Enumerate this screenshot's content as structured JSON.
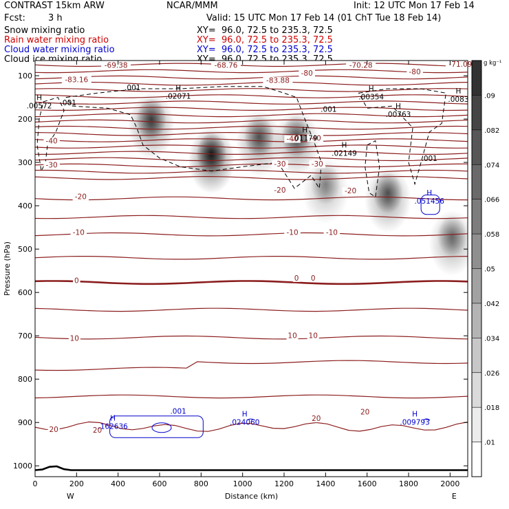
{
  "header": {
    "model": "CONTRAST 15km ARW",
    "org": "NCAR/MMM",
    "init": "Init: 12 UTC Mon 17 Feb 14",
    "fcst_label": "Fcst:",
    "fcst_value": "3 h",
    "valid": "Valid: 15 UTC Mon 17 Feb 14 (01 ChT Tue 18 Feb 14)"
  },
  "legend": [
    {
      "name": "Snow mixing ratio",
      "xy": "XY=  96.0, 72.5 to 235.3, 72.5",
      "color": "#000000"
    },
    {
      "name": "Rain water mixing ratio",
      "xy": "XY=  96.0, 72.5 to 235.3, 72.5",
      "color": "#cc0000"
    },
    {
      "name": "Cloud water mixing ratio",
      "xy": "XY=  96.0, 72.5 to 235.3, 72.5",
      "color": "#0000cc"
    },
    {
      "name": "Cloud ice mixing ratio",
      "xy": "XY=  96.0, 72.5 to 235.3, 72.5",
      "color": "#000000"
    }
  ],
  "colorbar": {
    "unit": "g kg⁻¹",
    "ticks": [
      ".01",
      ".018",
      ".026",
      ".034",
      ".042",
      ".05",
      ".058",
      ".066",
      ".074",
      ".082",
      ".09"
    ]
  },
  "compass": {
    "west": "W",
    "east": "E"
  },
  "chart_data": {
    "type": "heatmap",
    "xlabel": "Distance (km)",
    "ylabel": "Pressure (hPa)",
    "xlim": [
      0,
      2085
    ],
    "ylim": [
      1025,
      65
    ],
    "x_ticks": [
      0,
      200,
      400,
      600,
      800,
      1000,
      1200,
      1400,
      1600,
      1800,
      2000
    ],
    "y_ticks": [
      100,
      200,
      300,
      400,
      500,
      600,
      700,
      800,
      900,
      1000
    ],
    "snow_maxima": [
      {
        "x": 560,
        "p": 200,
        "v": 0.07
      },
      {
        "x": 850,
        "p": 280,
        "v": 0.09
      },
      {
        "x": 1080,
        "p": 240,
        "v": 0.06
      },
      {
        "x": 1260,
        "p": 240,
        "v": 0.06
      },
      {
        "x": 1400,
        "p": 350,
        "v": 0.04
      },
      {
        "x": 1700,
        "p": 370,
        "v": 0.06
      },
      {
        "x": 2010,
        "p": 470,
        "v": 0.05
      }
    ],
    "temperature_labels": [
      {
        "x": 390,
        "p": 80,
        "text": "-69.38"
      },
      {
        "x": 920,
        "p": 80,
        "text": "-68.76"
      },
      {
        "x": 1570,
        "p": 80,
        "text": "-70.28"
      },
      {
        "x": 2050,
        "p": 78,
        "text": "-71.09"
      },
      {
        "x": 200,
        "p": 113,
        "text": "-83.16"
      },
      {
        "x": 1170,
        "p": 115,
        "text": "-83.88"
      },
      {
        "x": 1310,
        "p": 98,
        "text": "-80"
      },
      {
        "x": 1830,
        "p": 95,
        "text": "-80"
      },
      {
        "x": 80,
        "p": 255,
        "text": "-40"
      },
      {
        "x": 1240,
        "p": 250,
        "text": "-40"
      },
      {
        "x": 1350,
        "p": 248,
        "text": "-40"
      },
      {
        "x": 80,
        "p": 310,
        "text": "-30"
      },
      {
        "x": 1180,
        "p": 308,
        "text": "-30"
      },
      {
        "x": 1360,
        "p": 308,
        "text": "-30"
      },
      {
        "x": 220,
        "p": 383,
        "text": "-20"
      },
      {
        "x": 1180,
        "p": 368,
        "text": "-20"
      },
      {
        "x": 1520,
        "p": 370,
        "text": "-20"
      },
      {
        "x": 210,
        "p": 466,
        "text": "-10"
      },
      {
        "x": 1240,
        "p": 466,
        "text": "-10"
      },
      {
        "x": 1430,
        "p": 466,
        "text": "-10"
      },
      {
        "x": 200,
        "p": 577,
        "text": "0"
      },
      {
        "x": 1260,
        "p": 571,
        "text": "0"
      },
      {
        "x": 1340,
        "p": 571,
        "text": "0"
      },
      {
        "x": 190,
        "p": 710,
        "text": "10"
      },
      {
        "x": 1240,
        "p": 704,
        "text": "10"
      },
      {
        "x": 1340,
        "p": 704,
        "text": "10"
      },
      {
        "x": 90,
        "p": 920,
        "text": "20"
      },
      {
        "x": 300,
        "p": 922,
        "text": "20"
      },
      {
        "x": 1355,
        "p": 895,
        "text": "20"
      },
      {
        "x": 1590,
        "p": 880,
        "text": "20"
      }
    ],
    "cloud_ice_labels": [
      {
        "x": 470,
        "p": 133,
        "text": ".001"
      },
      {
        "x": 160,
        "p": 168,
        "text": ".001"
      },
      {
        "x": 1415,
        "p": 183,
        "text": ".001"
      },
      {
        "x": 1900,
        "p": 297,
        "text": ".001"
      }
    ],
    "cloud_ice_maxima": [
      {
        "x": 20,
        "p": 175,
        "text": ".00572"
      },
      {
        "x": 690,
        "p": 153,
        "text": ".02071"
      },
      {
        "x": 1620,
        "p": 155,
        "text": ".00354"
      },
      {
        "x": 2040,
        "p": 160,
        "text": ".0083"
      },
      {
        "x": 1750,
        "p": 195,
        "text": ".00763"
      },
      {
        "x": 1300,
        "p": 250,
        "text": ".01179"
      },
      {
        "x": 1490,
        "p": 285,
        "text": ".02149"
      }
    ],
    "cloud_water_labels": [
      {
        "x": 690,
        "p": 880,
        "text": ".001"
      }
    ],
    "cloud_water_maxima": [
      {
        "x": 375,
        "p": 915,
        "text": ".162636"
      },
      {
        "x": 1010,
        "p": 905,
        "text": ".024060"
      },
      {
        "x": 1830,
        "p": 905,
        "text": ".009793"
      },
      {
        "x": 1900,
        "p": 395,
        "text": ".051456"
      }
    ],
    "cloud_max_symbol": "H",
    "temperature_contour_color": "#8b1c1c"
  }
}
